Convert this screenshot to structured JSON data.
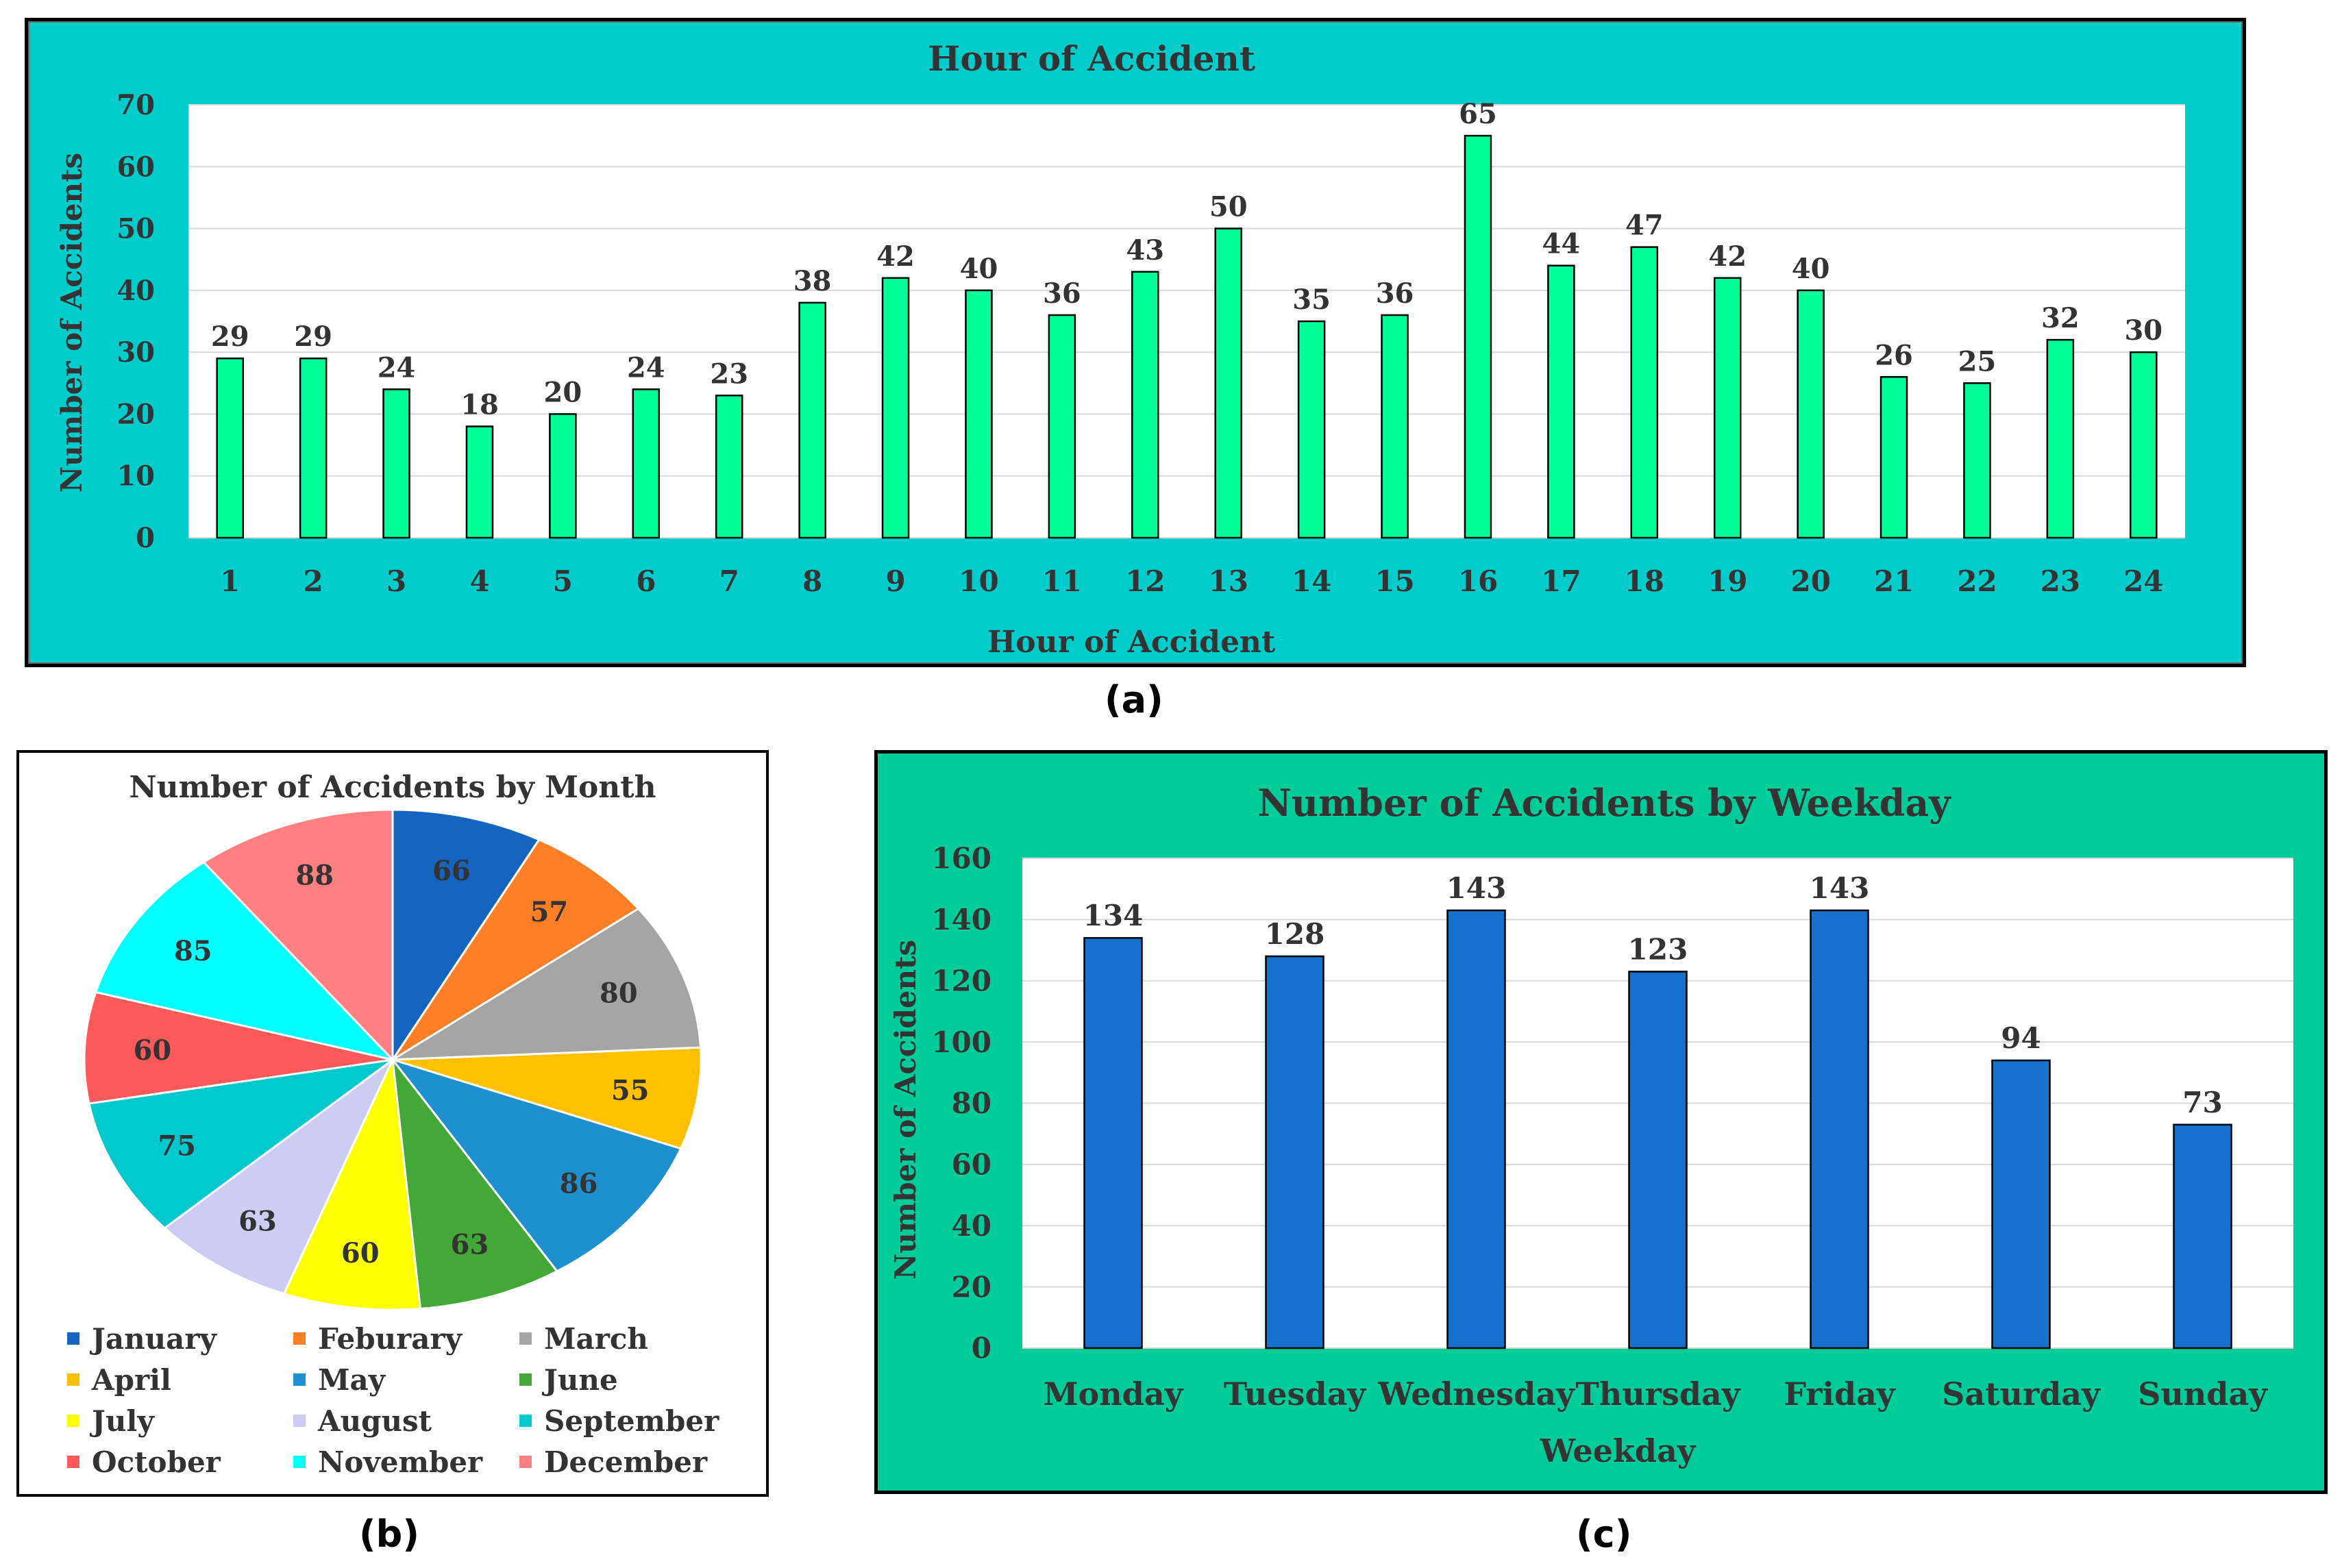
{
  "captions": {
    "a": "(a)",
    "b": "(b)",
    "c": "(c)"
  },
  "chart_data": [
    {
      "id": "a",
      "type": "bar",
      "title": "Hour  of Accident",
      "xlabel": "Hour of Accident",
      "ylabel": "Number of Accidents",
      "ylim": [
        0,
        70
      ],
      "yticks": [
        0,
        10,
        20,
        30,
        40,
        50,
        60,
        70
      ],
      "categories": [
        "1",
        "2",
        "3",
        "4",
        "5",
        "6",
        "7",
        "8",
        "9",
        "10",
        "11",
        "12",
        "13",
        "14",
        "15",
        "16",
        "17",
        "18",
        "19",
        "20",
        "21",
        "22",
        "23",
        "24"
      ],
      "values": [
        29,
        29,
        24,
        18,
        20,
        24,
        23,
        38,
        42,
        40,
        36,
        43,
        50,
        35,
        36,
        65,
        44,
        47,
        42,
        40,
        26,
        25,
        32,
        30
      ],
      "bar_color": "#00FF99",
      "background": "#00CCCC"
    },
    {
      "id": "b",
      "type": "pie",
      "title": "Number  of Accidents  by Month",
      "categories": [
        "January",
        "Feburary",
        "March",
        "April",
        "May",
        "June",
        "July",
        "August",
        "September",
        "October",
        "November",
        "December"
      ],
      "values": [
        66,
        57,
        80,
        55,
        86,
        63,
        60,
        63,
        75,
        60,
        85,
        88
      ],
      "colors": [
        "#1565C0",
        "#FF7F27",
        "#A5A5A5",
        "#FFC000",
        "#1E90D0",
        "#43A838",
        "#FFFF00",
        "#CCCCF5",
        "#00C8CC",
        "#FF5A5A",
        "#00FFFF",
        "#FF8080"
      ],
      "legend_position": "bottom"
    },
    {
      "id": "c",
      "type": "bar",
      "title": "Number of Accidents  by Weekday",
      "xlabel": "Weekday",
      "ylabel": "Number of Accidents",
      "ylim": [
        0,
        160
      ],
      "yticks": [
        0,
        20,
        40,
        60,
        80,
        100,
        120,
        140,
        160
      ],
      "categories": [
        "Monday",
        "Tuesday",
        "Wednesday",
        "Thursday",
        "Friday",
        "Saturday",
        "Sunday"
      ],
      "values": [
        134,
        128,
        143,
        123,
        143,
        94,
        73
      ],
      "bar_color": "#1670CC",
      "background": "#00CC99"
    }
  ]
}
